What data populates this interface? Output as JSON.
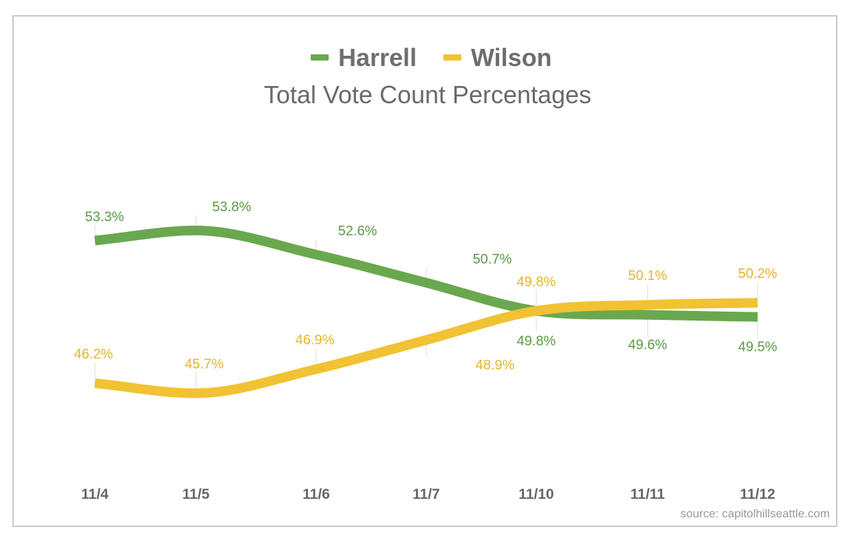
{
  "chart_data": {
    "type": "line",
    "title": "Total Vote Count Percentages",
    "categories": [
      "11/4",
      "11/5",
      "11/6",
      "11/7",
      "11/10",
      "11/11",
      "11/12"
    ],
    "series": [
      {
        "name": "Harrell",
        "color": "#6aa84f",
        "values": [
          53.3,
          53.8,
          52.6,
          null,
          49.8,
          49.6,
          49.5
        ],
        "labels": [
          "53.3%",
          "53.8%",
          "52.6%",
          "50.7%",
          "49.8%",
          "49.6%",
          "49.5%"
        ]
      },
      {
        "name": "Wilson",
        "color": "#f1c232",
        "values": [
          46.2,
          45.7,
          46.9,
          null,
          49.8,
          50.1,
          50.2
        ],
        "labels": [
          "46.2%",
          "45.7%",
          "46.9%",
          "48.9%",
          "49.8%",
          "50.1%",
          "50.2%"
        ]
      }
    ],
    "legend": "top-center",
    "xlabel": "",
    "ylabel": "",
    "grid": false
  },
  "source": "source: capitolhillseattle.com"
}
